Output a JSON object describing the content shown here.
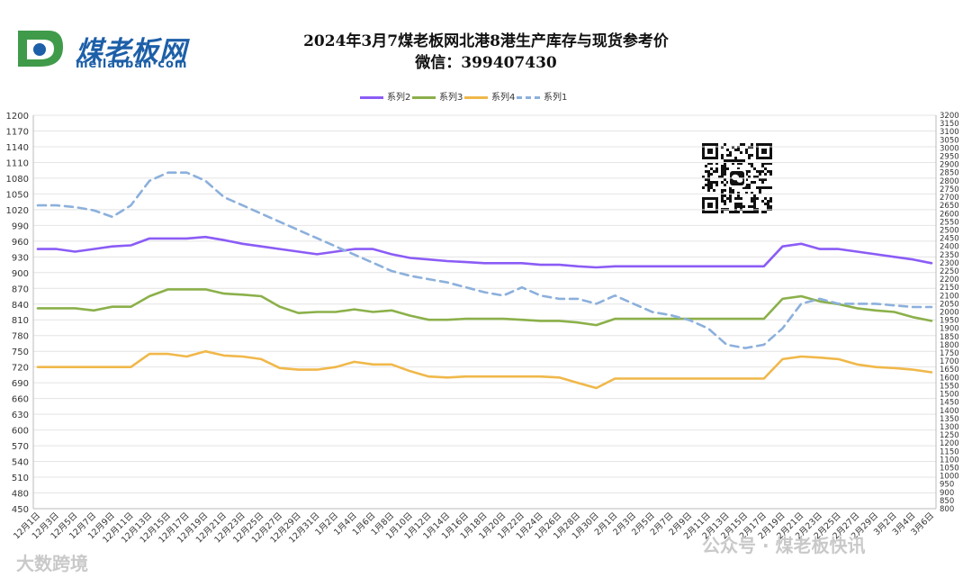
{
  "logo": {
    "name": "煤老板网",
    "url": "meilaoban·com"
  },
  "title_line1": "2024年3月7煤老板网北港8港生产库存与现货参考价",
  "title_line2": "微信：399407430",
  "watermark_left": "大数跨境",
  "watermark_right": "公众号 · 煤老板快讯",
  "chart_data": {
    "type": "line",
    "title": "2024年3月7煤老板网北港8港生产库存与现货参考价",
    "subtitle": "微信：399407430",
    "legend_position": "top",
    "grid": true,
    "x": [
      "12月1日",
      "12月3日",
      "12月5日",
      "12月7日",
      "12月9日",
      "12月11日",
      "12月13日",
      "12月15日",
      "12月17日",
      "12月19日",
      "12月21日",
      "12月23日",
      "12月25日",
      "12月27日",
      "12月29日",
      "12月31日",
      "1月2日",
      "1月4日",
      "1月6日",
      "1月8日",
      "1月10日",
      "1月12日",
      "1月14日",
      "1月16日",
      "1月18日",
      "1月20日",
      "1月22日",
      "1月24日",
      "1月26日",
      "1月28日",
      "1月30日",
      "2月1日",
      "2月3日",
      "2月5日",
      "2月7日",
      "2月9日",
      "2月11日",
      "2月13日",
      "2月15日",
      "2月17日",
      "2月19日",
      "2月21日",
      "2月23日",
      "2月25日",
      "2月27日",
      "2月29日",
      "3月2日",
      "3月4日",
      "3月6日"
    ],
    "y_left": {
      "min": 450,
      "max": 1200,
      "step": 30
    },
    "y_right": {
      "min": 800,
      "max": 3200,
      "step": 50
    },
    "series": [
      {
        "name": "系列2",
        "axis": "left",
        "color": "#8b5cf6",
        "values": [
          945,
          945,
          940,
          945,
          950,
          952,
          965,
          965,
          965,
          968,
          962,
          955,
          950,
          945,
          940,
          935,
          940,
          945,
          945,
          935,
          928,
          925,
          922,
          920,
          918,
          918,
          918,
          915,
          915,
          912,
          910,
          912,
          912,
          912,
          912,
          912,
          912,
          912,
          912,
          912,
          950,
          955,
          945,
          945,
          940,
          935,
          930,
          925,
          918
        ]
      },
      {
        "name": "系列3",
        "axis": "left",
        "color": "#8bb04a",
        "values": [
          832,
          832,
          832,
          828,
          835,
          835,
          855,
          868,
          868,
          868,
          860,
          858,
          855,
          835,
          823,
          825,
          825,
          830,
          825,
          828,
          818,
          810,
          810,
          812,
          812,
          812,
          810,
          808,
          808,
          805,
          800,
          812,
          812,
          812,
          812,
          812,
          812,
          812,
          812,
          812,
          850,
          855,
          845,
          840,
          832,
          828,
          825,
          815,
          808
        ]
      },
      {
        "name": "系列4",
        "axis": "left",
        "color": "#f0b84a",
        "values": [
          720,
          720,
          720,
          720,
          720,
          720,
          745,
          745,
          740,
          750,
          742,
          740,
          735,
          718,
          715,
          715,
          720,
          730,
          725,
          725,
          712,
          702,
          700,
          702,
          702,
          702,
          702,
          702,
          700,
          690,
          680,
          698,
          698,
          698,
          698,
          698,
          698,
          698,
          698,
          698,
          735,
          740,
          738,
          735,
          725,
          720,
          718,
          715,
          710
        ]
      },
      {
        "name": "系列1",
        "axis": "right",
        "color": "#8cb0dc",
        "dashed": true,
        "values": [
          2650,
          2650,
          2640,
          2620,
          2580,
          2650,
          2800,
          2850,
          2850,
          2800,
          2700,
          2650,
          2600,
          2550,
          2500,
          2450,
          2400,
          2350,
          2300,
          2250,
          2220,
          2200,
          2180,
          2150,
          2120,
          2100,
          2150,
          2100,
          2080,
          2080,
          2050,
          2100,
          2050,
          2000,
          1980,
          1950,
          1900,
          1800,
          1780,
          1800,
          1900,
          2050,
          2080,
          2050,
          2050,
          2050,
          2040,
          2030,
          2030
        ]
      }
    ]
  }
}
